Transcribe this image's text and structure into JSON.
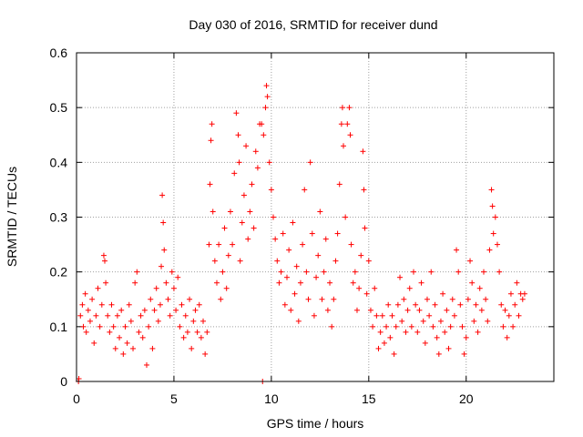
{
  "chart_data": {
    "type": "scatter",
    "title": "Day 030 of 2016, SRMTID for receiver dund",
    "xlabel": "GPS time / hours",
    "ylabel": "SRMTID / TECUs",
    "xlim": [
      0,
      24.5
    ],
    "ylim": [
      0,
      0.6
    ],
    "xticks": [
      0,
      5,
      10,
      15,
      20
    ],
    "xtick_labels": [
      "0",
      "5",
      "10",
      "15",
      "20"
    ],
    "yticks": [
      0,
      0.1,
      0.2,
      0.3,
      0.4,
      0.5,
      0.6
    ],
    "ytick_labels": [
      "0",
      "0.1",
      "0.2",
      "0.3",
      "0.4",
      "0.5",
      "0.6"
    ],
    "grid": true,
    "marker": "+",
    "color": "#ff0000",
    "series": [
      {
        "name": "SRMTID",
        "points": [
          [
            0.1,
            0.0
          ],
          [
            0.12,
            0.005
          ],
          [
            0.2,
            0.12
          ],
          [
            0.3,
            0.14
          ],
          [
            0.35,
            0.1
          ],
          [
            0.45,
            0.16
          ],
          [
            0.5,
            0.09
          ],
          [
            0.6,
            0.13
          ],
          [
            0.7,
            0.11
          ],
          [
            0.8,
            0.15
          ],
          [
            0.9,
            0.07
          ],
          [
            1.0,
            0.12
          ],
          [
            1.1,
            0.17
          ],
          [
            1.2,
            0.1
          ],
          [
            1.3,
            0.14
          ],
          [
            1.4,
            0.23
          ],
          [
            1.45,
            0.22
          ],
          [
            1.5,
            0.18
          ],
          [
            1.6,
            0.12
          ],
          [
            1.7,
            0.09
          ],
          [
            1.8,
            0.14
          ],
          [
            1.9,
            0.1
          ],
          [
            2.0,
            0.06
          ],
          [
            2.1,
            0.12
          ],
          [
            2.2,
            0.08
          ],
          [
            2.3,
            0.13
          ],
          [
            2.4,
            0.05
          ],
          [
            2.5,
            0.1
          ],
          [
            2.6,
            0.07
          ],
          [
            2.7,
            0.14
          ],
          [
            2.8,
            0.11
          ],
          [
            2.9,
            0.06
          ],
          [
            3.0,
            0.18
          ],
          [
            3.1,
            0.2
          ],
          [
            3.2,
            0.09
          ],
          [
            3.3,
            0.12
          ],
          [
            3.4,
            0.08
          ],
          [
            3.5,
            0.13
          ],
          [
            3.6,
            0.03
          ],
          [
            3.7,
            0.1
          ],
          [
            3.8,
            0.15
          ],
          [
            3.9,
            0.06
          ],
          [
            4.0,
            0.13
          ],
          [
            4.1,
            0.17
          ],
          [
            4.2,
            0.11
          ],
          [
            4.3,
            0.14
          ],
          [
            4.35,
            0.21
          ],
          [
            4.4,
            0.34
          ],
          [
            4.45,
            0.29
          ],
          [
            4.5,
            0.24
          ],
          [
            4.6,
            0.18
          ],
          [
            4.7,
            0.15
          ],
          [
            4.8,
            0.12
          ],
          [
            4.9,
            0.2
          ],
          [
            5.0,
            0.17
          ],
          [
            5.1,
            0.13
          ],
          [
            5.2,
            0.19
          ],
          [
            5.3,
            0.1
          ],
          [
            5.4,
            0.14
          ],
          [
            5.5,
            0.08
          ],
          [
            5.6,
            0.12
          ],
          [
            5.7,
            0.09
          ],
          [
            5.8,
            0.15
          ],
          [
            5.9,
            0.06
          ],
          [
            6.0,
            0.11
          ],
          [
            6.1,
            0.13
          ],
          [
            6.2,
            0.09
          ],
          [
            6.3,
            0.14
          ],
          [
            6.4,
            0.08
          ],
          [
            6.5,
            0.11
          ],
          [
            6.6,
            0.05
          ],
          [
            6.7,
            0.09
          ],
          [
            6.8,
            0.25
          ],
          [
            6.85,
            0.36
          ],
          [
            6.9,
            0.44
          ],
          [
            6.95,
            0.47
          ],
          [
            7.0,
            0.31
          ],
          [
            7.1,
            0.22
          ],
          [
            7.2,
            0.18
          ],
          [
            7.3,
            0.25
          ],
          [
            7.4,
            0.15
          ],
          [
            7.5,
            0.2
          ],
          [
            7.6,
            0.28
          ],
          [
            7.7,
            0.17
          ],
          [
            7.8,
            0.23
          ],
          [
            7.9,
            0.31
          ],
          [
            8.0,
            0.25
          ],
          [
            8.1,
            0.38
          ],
          [
            8.2,
            0.49
          ],
          [
            8.3,
            0.45
          ],
          [
            8.35,
            0.4
          ],
          [
            8.4,
            0.22
          ],
          [
            8.5,
            0.29
          ],
          [
            8.6,
            0.34
          ],
          [
            8.7,
            0.43
          ],
          [
            8.8,
            0.26
          ],
          [
            8.9,
            0.31
          ],
          [
            9.0,
            0.36
          ],
          [
            9.1,
            0.28
          ],
          [
            9.2,
            0.42
          ],
          [
            9.3,
            0.39
          ],
          [
            9.4,
            0.47
          ],
          [
            9.5,
            0.47
          ],
          [
            9.55,
            0.0
          ],
          [
            9.6,
            0.45
          ],
          [
            9.7,
            0.5
          ],
          [
            9.75,
            0.54
          ],
          [
            9.8,
            0.52
          ],
          [
            9.9,
            0.4
          ],
          [
            10.0,
            0.35
          ],
          [
            10.1,
            0.3
          ],
          [
            10.2,
            0.26
          ],
          [
            10.3,
            0.22
          ],
          [
            10.4,
            0.18
          ],
          [
            10.5,
            0.2
          ],
          [
            10.6,
            0.27
          ],
          [
            10.7,
            0.14
          ],
          [
            10.8,
            0.19
          ],
          [
            10.9,
            0.24
          ],
          [
            11.0,
            0.13
          ],
          [
            11.1,
            0.29
          ],
          [
            11.2,
            0.16
          ],
          [
            11.3,
            0.21
          ],
          [
            11.4,
            0.11
          ],
          [
            11.5,
            0.18
          ],
          [
            11.6,
            0.25
          ],
          [
            11.7,
            0.35
          ],
          [
            11.8,
            0.2
          ],
          [
            11.9,
            0.15
          ],
          [
            12.0,
            0.4
          ],
          [
            12.1,
            0.27
          ],
          [
            12.2,
            0.12
          ],
          [
            12.3,
            0.19
          ],
          [
            12.4,
            0.23
          ],
          [
            12.5,
            0.31
          ],
          [
            12.6,
            0.15
          ],
          [
            12.7,
            0.2
          ],
          [
            12.8,
            0.26
          ],
          [
            12.9,
            0.13
          ],
          [
            13.0,
            0.18
          ],
          [
            13.1,
            0.1
          ],
          [
            13.2,
            0.15
          ],
          [
            13.3,
            0.22
          ],
          [
            13.4,
            0.27
          ],
          [
            13.5,
            0.36
          ],
          [
            13.6,
            0.47
          ],
          [
            13.65,
            0.5
          ],
          [
            13.7,
            0.43
          ],
          [
            13.8,
            0.3
          ],
          [
            13.9,
            0.47
          ],
          [
            14.0,
            0.5
          ],
          [
            14.05,
            0.45
          ],
          [
            14.1,
            0.25
          ],
          [
            14.2,
            0.18
          ],
          [
            14.3,
            0.2
          ],
          [
            14.4,
            0.13
          ],
          [
            14.5,
            0.17
          ],
          [
            14.6,
            0.23
          ],
          [
            14.7,
            0.42
          ],
          [
            14.75,
            0.35
          ],
          [
            14.8,
            0.28
          ],
          [
            14.9,
            0.16
          ],
          [
            15.0,
            0.22
          ],
          [
            15.1,
            0.13
          ],
          [
            15.2,
            0.1
          ],
          [
            15.3,
            0.17
          ],
          [
            15.4,
            0.12
          ],
          [
            15.5,
            0.06
          ],
          [
            15.6,
            0.09
          ],
          [
            15.7,
            0.12
          ],
          [
            15.8,
            0.07
          ],
          [
            15.9,
            0.1
          ],
          [
            16.0,
            0.14
          ],
          [
            16.1,
            0.08
          ],
          [
            16.2,
            0.12
          ],
          [
            16.3,
            0.05
          ],
          [
            16.4,
            0.1
          ],
          [
            16.5,
            0.14
          ],
          [
            16.6,
            0.19
          ],
          [
            16.7,
            0.11
          ],
          [
            16.8,
            0.15
          ],
          [
            16.9,
            0.09
          ],
          [
            17.0,
            0.13
          ],
          [
            17.1,
            0.17
          ],
          [
            17.2,
            0.1
          ],
          [
            17.3,
            0.2
          ],
          [
            17.4,
            0.14
          ],
          [
            17.5,
            0.09
          ],
          [
            17.6,
            0.13
          ],
          [
            17.7,
            0.18
          ],
          [
            17.8,
            0.11
          ],
          [
            17.9,
            0.07
          ],
          [
            18.0,
            0.15
          ],
          [
            18.1,
            0.12
          ],
          [
            18.2,
            0.2
          ],
          [
            18.3,
            0.1
          ],
          [
            18.4,
            0.14
          ],
          [
            18.5,
            0.08
          ],
          [
            18.6,
            0.05
          ],
          [
            18.7,
            0.11
          ],
          [
            18.8,
            0.16
          ],
          [
            18.9,
            0.09
          ],
          [
            19.0,
            0.13
          ],
          [
            19.1,
            0.06
          ],
          [
            19.2,
            0.1
          ],
          [
            19.3,
            0.15
          ],
          [
            19.4,
            0.12
          ],
          [
            19.5,
            0.24
          ],
          [
            19.6,
            0.2
          ],
          [
            19.7,
            0.14
          ],
          [
            19.8,
            0.1
          ],
          [
            19.9,
            0.05
          ],
          [
            20.0,
            0.08
          ],
          [
            20.1,
            0.15
          ],
          [
            20.2,
            0.22
          ],
          [
            20.3,
            0.18
          ],
          [
            20.4,
            0.11
          ],
          [
            20.5,
            0.14
          ],
          [
            20.6,
            0.09
          ],
          [
            20.7,
            0.17
          ],
          [
            20.8,
            0.13
          ],
          [
            20.9,
            0.2
          ],
          [
            21.0,
            0.15
          ],
          [
            21.1,
            0.11
          ],
          [
            21.2,
            0.24
          ],
          [
            21.3,
            0.35
          ],
          [
            21.35,
            0.32
          ],
          [
            21.4,
            0.27
          ],
          [
            21.5,
            0.3
          ],
          [
            21.6,
            0.25
          ],
          [
            21.7,
            0.2
          ],
          [
            21.8,
            0.14
          ],
          [
            21.9,
            0.1
          ],
          [
            22.0,
            0.13
          ],
          [
            22.1,
            0.08
          ],
          [
            22.2,
            0.12
          ],
          [
            22.3,
            0.16
          ],
          [
            22.4,
            0.1
          ],
          [
            22.5,
            0.14
          ],
          [
            22.6,
            0.18
          ],
          [
            22.7,
            0.12
          ],
          [
            22.8,
            0.16
          ],
          [
            22.9,
            0.15
          ],
          [
            23.0,
            0.16
          ]
        ]
      }
    ]
  }
}
